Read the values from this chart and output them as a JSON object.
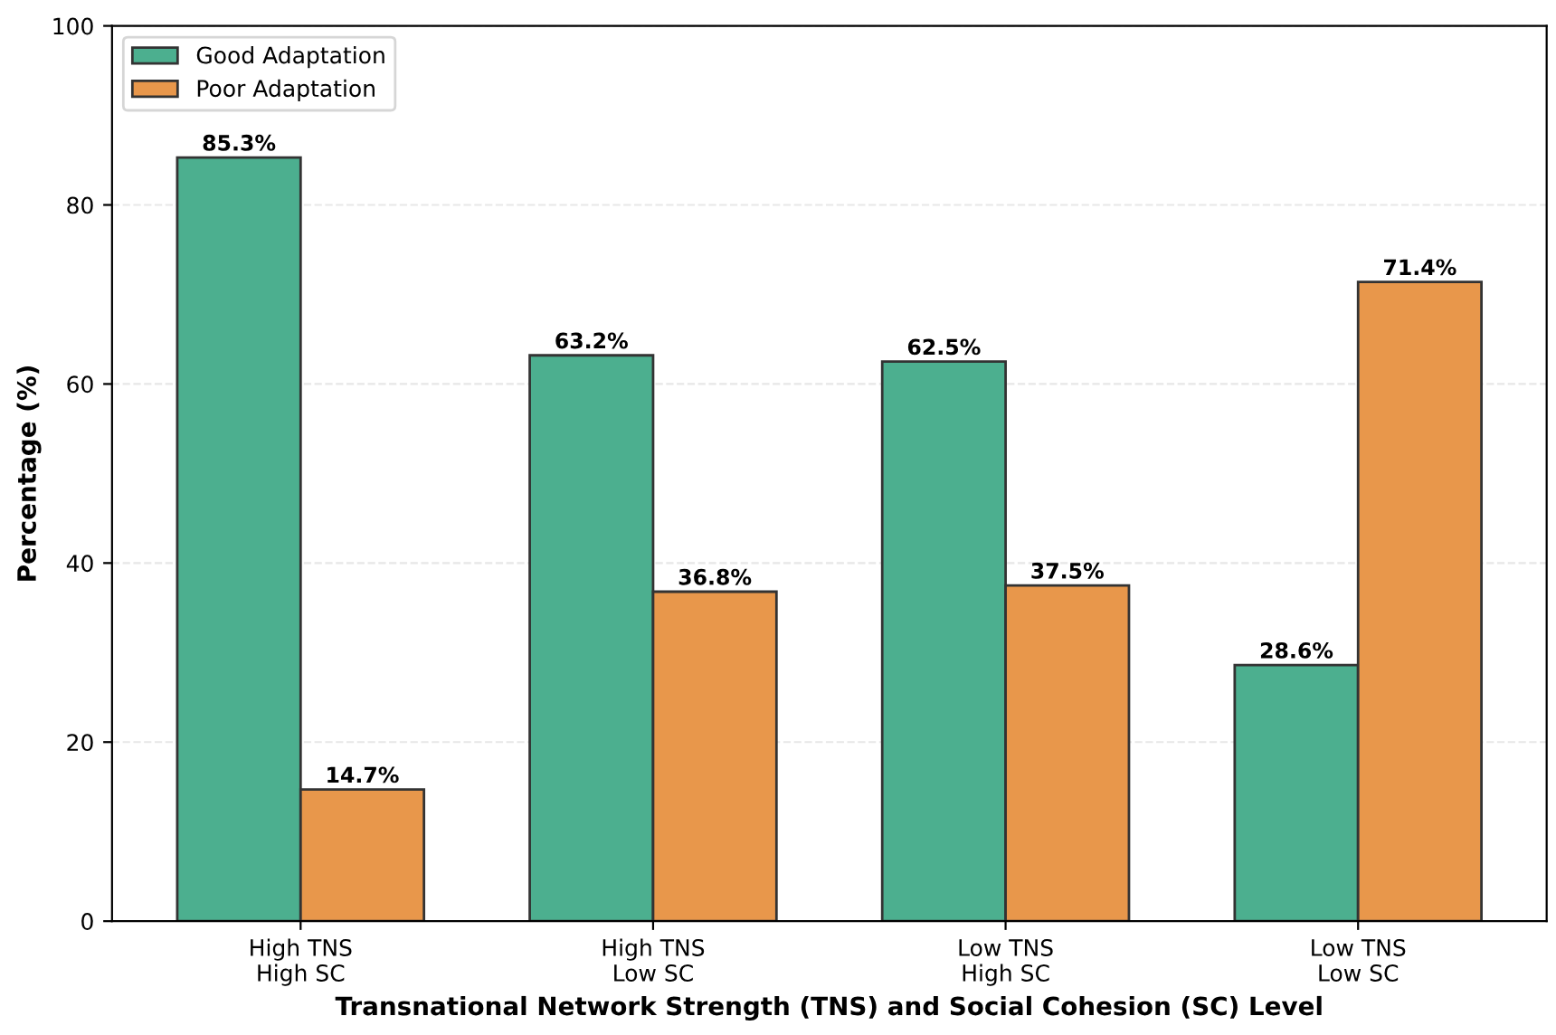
{
  "chart_data": {
    "type": "bar",
    "xlabel": "Transnational Network Strength (TNS) and Social Cohesion (SC) Level",
    "ylabel": "Percentage (%)",
    "categories": [
      "High TNS\nHigh SC",
      "High TNS\nLow SC",
      "Low TNS\nHigh SC",
      "Low TNS\nLow SC"
    ],
    "series": [
      {
        "name": "Good Adaptation",
        "color": "#4caf8f",
        "values": [
          85.3,
          63.2,
          62.5,
          28.6
        ],
        "value_labels": [
          "85.3%",
          "63.2%",
          "62.5%",
          "28.6%"
        ]
      },
      {
        "name": "Poor Adaptation",
        "color": "#e8974b",
        "values": [
          14.7,
          36.8,
          37.5,
          71.4
        ],
        "value_labels": [
          "14.7%",
          "36.8%",
          "37.5%",
          "71.4%"
        ]
      }
    ],
    "ylim": [
      0,
      100
    ],
    "yticks": [
      0,
      20,
      40,
      60,
      80,
      100
    ],
    "grid": "y",
    "legend": "top left"
  }
}
